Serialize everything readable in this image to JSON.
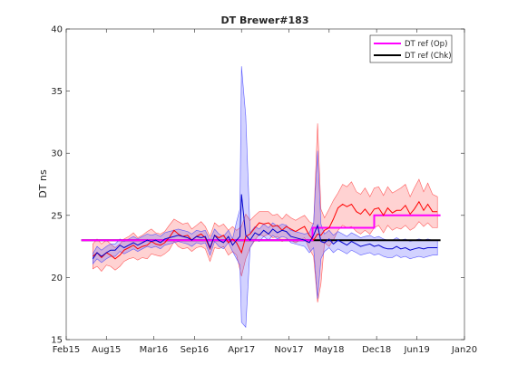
{
  "chart_data": {
    "type": "line",
    "title": "DT  Brewer#183",
    "xlabel": "",
    "ylabel": "DT ns",
    "ylim": [
      15,
      40
    ],
    "xlim": [
      "2015-02-01",
      "2020-01-01"
    ],
    "yticks": [
      15,
      20,
      25,
      30,
      35,
      40
    ],
    "xticks": [
      {
        "label": "Feb15",
        "date": "2015-02-01"
      },
      {
        "label": "Aug15",
        "date": "2015-08-01"
      },
      {
        "label": "Mar16",
        "date": "2016-03-01"
      },
      {
        "label": "Sep16",
        "date": "2016-09-01"
      },
      {
        "label": "Apr17",
        "date": "2017-04-01"
      },
      {
        "label": "Nov17",
        "date": "2017-11-01"
      },
      {
        "label": "May18",
        "date": "2018-05-01"
      },
      {
        "label": "Dec18",
        "date": "2018-12-01"
      },
      {
        "label": "Jun19",
        "date": "2019-06-01"
      },
      {
        "label": "Jan20",
        "date": "2020-01-01"
      }
    ],
    "grid": false,
    "legend_position": "top-right",
    "series": [
      {
        "name": "DT ref (Op)",
        "color": "#ff00ff",
        "style": "step",
        "points": [
          [
            "2015-04-10",
            23.0
          ],
          [
            "2018-02-15",
            23.0
          ],
          [
            "2018-02-15",
            24.0
          ],
          [
            "2018-11-20",
            24.0
          ],
          [
            "2018-11-20",
            25.0
          ],
          [
            "2019-09-15",
            25.0
          ]
        ]
      },
      {
        "name": "DT ref (Chk)",
        "color": "#000000",
        "style": "line",
        "points": [
          [
            "2015-04-10",
            23.0
          ],
          [
            "2019-09-15",
            23.0
          ]
        ]
      },
      {
        "color": "#ff0000",
        "band_color": "#ff4d4d",
        "style": "line_band",
        "points": [
          [
            "2015-06-01",
            21.7,
            20.7,
            22.7
          ],
          [
            "2015-06-20",
            22.0,
            20.9,
            23.1
          ],
          [
            "2015-07-10",
            21.6,
            20.5,
            22.7
          ],
          [
            "2015-08-01",
            22.0,
            21.0,
            23.0
          ],
          [
            "2015-08-20",
            21.8,
            20.9,
            22.7
          ],
          [
            "2015-09-10",
            21.5,
            20.6,
            22.4
          ],
          [
            "2015-10-01",
            21.8,
            20.9,
            22.7
          ],
          [
            "2015-10-20",
            22.2,
            21.3,
            23.1
          ],
          [
            "2015-11-10",
            22.4,
            21.5,
            23.3
          ],
          [
            "2015-12-01",
            22.6,
            21.6,
            23.6
          ],
          [
            "2015-12-20",
            22.3,
            21.4,
            23.2
          ],
          [
            "2016-01-10",
            22.5,
            21.6,
            23.4
          ],
          [
            "2016-02-01",
            22.6,
            21.5,
            23.7
          ],
          [
            "2016-02-20",
            22.9,
            21.9,
            23.9
          ],
          [
            "2016-03-10",
            22.7,
            21.8,
            23.6
          ],
          [
            "2016-04-01",
            22.6,
            21.7,
            23.5
          ],
          [
            "2016-04-20",
            22.8,
            21.9,
            23.7
          ],
          [
            "2016-05-10",
            23.2,
            22.2,
            24.2
          ],
          [
            "2016-06-01",
            23.8,
            22.9,
            24.7
          ],
          [
            "2016-06-20",
            23.5,
            22.5,
            24.5
          ],
          [
            "2016-07-10",
            23.3,
            22.3,
            24.3
          ],
          [
            "2016-08-01",
            23.4,
            22.4,
            24.4
          ],
          [
            "2016-08-20",
            23.0,
            22.1,
            23.9
          ],
          [
            "2016-09-10",
            23.3,
            22.4,
            24.2
          ],
          [
            "2016-10-01",
            23.5,
            22.5,
            24.5
          ],
          [
            "2016-10-20",
            23.2,
            22.3,
            24.1
          ],
          [
            "2016-11-10",
            22.3,
            21.3,
            23.3
          ],
          [
            "2016-12-01",
            23.4,
            22.4,
            24.4
          ],
          [
            "2016-12-20",
            23.2,
            22.3,
            24.1
          ],
          [
            "2017-01-10",
            23.4,
            22.5,
            24.3
          ],
          [
            "2017-02-01",
            22.8,
            21.8,
            23.8
          ],
          [
            "2017-02-20",
            23.1,
            22.1,
            24.1
          ],
          [
            "2017-03-10",
            22.8,
            21.8,
            23.8
          ],
          [
            "2017-04-01",
            22.0,
            20.1,
            24.1
          ],
          [
            "2017-04-20",
            23.3,
            21.5,
            25.1
          ],
          [
            "2017-05-10",
            23.5,
            22.4,
            24.6
          ],
          [
            "2017-06-01",
            24.0,
            23.0,
            25.0
          ],
          [
            "2017-06-20",
            24.4,
            23.5,
            25.3
          ],
          [
            "2017-07-10",
            24.3,
            23.3,
            25.3
          ],
          [
            "2017-08-01",
            24.4,
            23.5,
            25.3
          ],
          [
            "2017-08-20",
            24.1,
            23.2,
            25.0
          ],
          [
            "2017-09-10",
            24.2,
            23.3,
            25.1
          ],
          [
            "2017-10-01",
            23.8,
            22.9,
            24.7
          ],
          [
            "2017-10-20",
            24.1,
            23.1,
            25.1
          ],
          [
            "2017-11-10",
            23.9,
            23.0,
            24.8
          ],
          [
            "2017-12-01",
            23.7,
            22.8,
            24.6
          ],
          [
            "2017-12-20",
            23.9,
            23.0,
            24.8
          ],
          [
            "2018-01-10",
            24.1,
            23.2,
            25.0
          ],
          [
            "2018-02-01",
            23.4,
            22.3,
            24.5
          ],
          [
            "2018-02-20",
            23.0,
            21.7,
            24.3
          ],
          [
            "2018-03-10",
            23.5,
            18.0,
            32.4
          ],
          [
            "2018-03-25",
            23.4,
            19.5,
            25.5
          ],
          [
            "2018-04-10",
            23.8,
            22.8,
            24.8
          ],
          [
            "2018-05-01",
            24.0,
            22.5,
            25.5
          ],
          [
            "2018-05-20",
            24.7,
            23.0,
            26.2
          ],
          [
            "2018-06-10",
            25.6,
            23.8,
            26.8
          ],
          [
            "2018-07-01",
            25.9,
            24.2,
            27.5
          ],
          [
            "2018-07-20",
            25.7,
            24.0,
            27.3
          ],
          [
            "2018-08-10",
            25.9,
            24.1,
            27.7
          ],
          [
            "2018-09-01",
            25.3,
            23.7,
            26.9
          ],
          [
            "2018-09-20",
            25.1,
            23.5,
            26.7
          ],
          [
            "2018-10-10",
            25.5,
            23.8,
            27.2
          ],
          [
            "2018-11-01",
            25.0,
            23.5,
            26.5
          ],
          [
            "2018-11-20",
            25.5,
            24.0,
            27.2
          ],
          [
            "2018-12-10",
            25.6,
            24.2,
            27.3
          ],
          [
            "2019-01-01",
            25.0,
            23.6,
            26.6
          ],
          [
            "2019-01-20",
            25.6,
            24.2,
            27.3
          ],
          [
            "2019-02-10",
            25.2,
            23.8,
            26.8
          ],
          [
            "2019-03-01",
            25.4,
            24.0,
            27.0
          ],
          [
            "2019-03-20",
            25.4,
            23.9,
            27.2
          ],
          [
            "2019-04-10",
            25.8,
            24.2,
            27.5
          ],
          [
            "2019-05-01",
            25.1,
            23.8,
            26.5
          ],
          [
            "2019-05-20",
            25.5,
            24.0,
            27.2
          ],
          [
            "2019-06-10",
            26.1,
            24.5,
            27.9
          ],
          [
            "2019-07-01",
            25.4,
            24.1,
            26.9
          ],
          [
            "2019-07-20",
            25.9,
            24.4,
            27.6
          ],
          [
            "2019-08-10",
            25.3,
            24.0,
            26.7
          ],
          [
            "2019-09-01",
            25.3,
            24.0,
            26.5
          ]
        ]
      },
      {
        "color": "#0000cc",
        "band_color": "#4d4dff",
        "style": "line_band",
        "points": [
          [
            "2015-06-01",
            21.5,
            21.1,
            21.9
          ],
          [
            "2015-06-20",
            22.0,
            21.5,
            22.5
          ],
          [
            "2015-07-10",
            21.7,
            21.2,
            22.2
          ],
          [
            "2015-08-01",
            22.0,
            21.5,
            22.5
          ],
          [
            "2015-08-20",
            22.2,
            21.7,
            22.7
          ],
          [
            "2015-09-10",
            22.2,
            21.7,
            22.7
          ],
          [
            "2015-10-01",
            22.6,
            22.1,
            23.1
          ],
          [
            "2015-10-20",
            22.4,
            21.9,
            22.9
          ],
          [
            "2015-11-10",
            22.6,
            22.1,
            23.1
          ],
          [
            "2015-12-01",
            22.8,
            22.3,
            23.3
          ],
          [
            "2015-12-20",
            22.6,
            22.1,
            23.1
          ],
          [
            "2016-01-10",
            22.8,
            22.3,
            23.3
          ],
          [
            "2016-02-01",
            23.0,
            22.5,
            23.5
          ],
          [
            "2016-02-20",
            22.9,
            22.4,
            23.4
          ],
          [
            "2016-03-10",
            23.0,
            22.5,
            23.5
          ],
          [
            "2016-04-01",
            22.8,
            22.3,
            23.3
          ],
          [
            "2016-04-20",
            23.1,
            22.6,
            23.6
          ],
          [
            "2016-05-10",
            23.2,
            22.7,
            23.7
          ],
          [
            "2016-06-01",
            23.3,
            22.8,
            23.8
          ],
          [
            "2016-06-20",
            23.4,
            22.9,
            23.9
          ],
          [
            "2016-07-10",
            23.3,
            22.8,
            23.8
          ],
          [
            "2016-08-01",
            23.2,
            22.7,
            23.7
          ],
          [
            "2016-08-20",
            23.0,
            22.5,
            23.5
          ],
          [
            "2016-09-10",
            23.3,
            22.8,
            23.8
          ],
          [
            "2016-10-01",
            23.2,
            22.7,
            23.7
          ],
          [
            "2016-10-20",
            23.3,
            22.8,
            23.8
          ],
          [
            "2016-11-10",
            22.4,
            21.8,
            23.0
          ],
          [
            "2016-12-01",
            23.4,
            22.9,
            23.9
          ],
          [
            "2016-12-20",
            23.0,
            22.5,
            23.5
          ],
          [
            "2017-01-10",
            22.8,
            22.3,
            23.3
          ],
          [
            "2017-02-01",
            23.3,
            22.8,
            23.8
          ],
          [
            "2017-02-20",
            22.6,
            22.1,
            23.1
          ],
          [
            "2017-03-10",
            23.0,
            21.5,
            24.5
          ],
          [
            "2017-03-25",
            23.3,
            21.0,
            25.5
          ],
          [
            "2017-04-01",
            26.7,
            16.4,
            37.0
          ],
          [
            "2017-04-20",
            23.4,
            16.0,
            33.0
          ],
          [
            "2017-05-10",
            23.0,
            22.4,
            23.6
          ],
          [
            "2017-06-01",
            23.6,
            23.1,
            24.1
          ],
          [
            "2017-06-20",
            23.4,
            22.9,
            23.9
          ],
          [
            "2017-07-10",
            23.8,
            23.3,
            24.3
          ],
          [
            "2017-08-01",
            23.5,
            23.0,
            24.0
          ],
          [
            "2017-08-20",
            23.9,
            23.4,
            24.4
          ],
          [
            "2017-09-10",
            23.6,
            23.1,
            24.1
          ],
          [
            "2017-10-01",
            23.8,
            23.3,
            24.3
          ],
          [
            "2017-10-20",
            23.7,
            23.2,
            24.2
          ],
          [
            "2017-11-10",
            23.3,
            22.8,
            23.8
          ],
          [
            "2018-01-10",
            23.0,
            22.5,
            23.5
          ],
          [
            "2018-02-01",
            22.8,
            22.0,
            23.6
          ],
          [
            "2018-02-20",
            23.4,
            22.4,
            24.4
          ],
          [
            "2018-03-10",
            24.2,
            18.3,
            30.2
          ],
          [
            "2018-03-25",
            22.9,
            21.5,
            24.3
          ],
          [
            "2018-04-10",
            22.8,
            22.1,
            23.5
          ],
          [
            "2018-05-01",
            23.1,
            22.4,
            23.8
          ],
          [
            "2018-05-20",
            22.7,
            22.0,
            23.4
          ],
          [
            "2018-06-10",
            23.0,
            22.3,
            23.7
          ],
          [
            "2018-07-01",
            22.8,
            22.1,
            23.5
          ],
          [
            "2018-07-20",
            22.6,
            21.9,
            23.3
          ],
          [
            "2018-08-10",
            22.9,
            22.2,
            23.6
          ],
          [
            "2018-09-01",
            22.7,
            22.0,
            23.4
          ],
          [
            "2018-09-20",
            22.5,
            21.8,
            23.2
          ],
          [
            "2018-10-10",
            22.6,
            21.9,
            23.3
          ],
          [
            "2018-11-01",
            22.7,
            22.0,
            23.4
          ],
          [
            "2018-11-20",
            22.5,
            21.8,
            23.2
          ],
          [
            "2018-12-10",
            22.6,
            21.9,
            23.3
          ],
          [
            "2019-01-01",
            22.4,
            21.7,
            23.1
          ],
          [
            "2019-01-20",
            22.3,
            21.6,
            23.0
          ],
          [
            "2019-02-10",
            22.3,
            21.6,
            23.0
          ],
          [
            "2019-03-01",
            22.5,
            21.8,
            23.2
          ],
          [
            "2019-03-20",
            22.3,
            21.6,
            23.0
          ],
          [
            "2019-04-10",
            22.4,
            21.7,
            23.1
          ],
          [
            "2019-05-01",
            22.2,
            21.5,
            22.9
          ],
          [
            "2019-05-20",
            22.3,
            21.6,
            23.0
          ],
          [
            "2019-06-10",
            22.4,
            21.7,
            23.1
          ],
          [
            "2019-07-01",
            22.3,
            21.6,
            23.0
          ],
          [
            "2019-07-20",
            22.4,
            21.7,
            23.1
          ],
          [
            "2019-08-10",
            22.4,
            21.8,
            23.0
          ],
          [
            "2019-09-01",
            22.4,
            21.8,
            23.0
          ]
        ]
      }
    ]
  }
}
